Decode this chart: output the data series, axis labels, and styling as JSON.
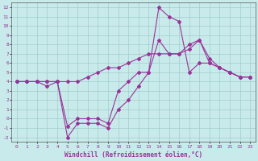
{
  "xlabel": "Windchill (Refroidissement éolien,°C)",
  "xlim": [
    -0.5,
    23.5
  ],
  "ylim": [
    -2.5,
    12.5
  ],
  "xticks": [
    0,
    1,
    2,
    3,
    4,
    5,
    6,
    7,
    8,
    9,
    10,
    11,
    12,
    13,
    14,
    15,
    16,
    17,
    18,
    19,
    20,
    21,
    22,
    23
  ],
  "yticks": [
    -2,
    -1,
    0,
    1,
    2,
    3,
    4,
    5,
    6,
    7,
    8,
    9,
    10,
    11,
    12
  ],
  "bg_color": "#c8eaea",
  "line_color": "#993399",
  "grid_color": "#a0cccc",
  "lines": [
    {
      "x": [
        0,
        1,
        2,
        3,
        4,
        5,
        6,
        7,
        8,
        9,
        10,
        11,
        12,
        13,
        14,
        15,
        16,
        17,
        18,
        19,
        20,
        21,
        22,
        23
      ],
      "y": [
        4,
        4,
        4,
        4,
        4,
        -2,
        -0.5,
        -0.5,
        -0.5,
        -1,
        1,
        2,
        3.5,
        5,
        12,
        11,
        10.5,
        5,
        6,
        6,
        5.5,
        5,
        4.5,
        4.5
      ]
    },
    {
      "x": [
        0,
        1,
        2,
        3,
        4,
        5,
        6,
        7,
        8,
        9,
        10,
        11,
        12,
        13,
        14,
        15,
        16,
        17,
        18,
        19,
        20,
        21,
        22,
        23
      ],
      "y": [
        4,
        4,
        4,
        3.5,
        4,
        -0.8,
        0,
        0,
        0,
        -0.5,
        3,
        4,
        5,
        5,
        8.5,
        7,
        7,
        7.5,
        8.5,
        6,
        5.5,
        5,
        4.5,
        4.5
      ]
    },
    {
      "x": [
        0,
        1,
        2,
        3,
        4,
        5,
        6,
        7,
        8,
        9,
        10,
        11,
        12,
        13,
        14,
        15,
        16,
        17,
        18,
        19,
        20,
        21,
        22,
        23
      ],
      "y": [
        4,
        4,
        4,
        4,
        4,
        4,
        4,
        4.5,
        5,
        5.5,
        5.5,
        6,
        6.5,
        7,
        7,
        7,
        7,
        8,
        8.5,
        6.5,
        5.5,
        5,
        4.5,
        4.5
      ]
    }
  ],
  "marker": "D",
  "markersize": 2.0,
  "linewidth": 0.8,
  "tick_fontsize": 4.5,
  "label_fontsize": 5.5
}
